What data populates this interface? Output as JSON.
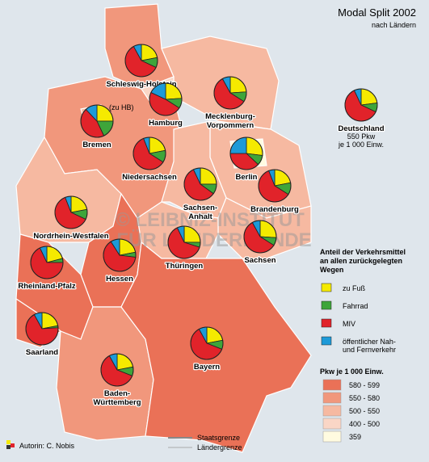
{
  "title": "Modal Split 2002",
  "subtitle": "nach Ländern",
  "watermark": [
    "© LEIBNIZ-INSTITUT",
    "FÜR LÄNDERKUNDE"
  ],
  "modes": {
    "title": [
      "Anteil der Verkehrsmittel",
      "an allen zurückgelegten",
      "Wegen"
    ],
    "items": [
      {
        "name": [
          "zu Fuß"
        ],
        "color": "#f5ea00"
      },
      {
        "name": [
          "Fahrrad"
        ],
        "color": "#3ea53a"
      },
      {
        "name": [
          "MIV"
        ],
        "color": "#e1232a"
      },
      {
        "name": [
          "öffentlicher Nah-",
          "und Fernverkehr"
        ],
        "color": "#1d9ad8"
      }
    ]
  },
  "pkw_legend": {
    "title": "Pkw je 1 000 Einw.",
    "classes": [
      {
        "label": "580 - 599",
        "color": "#ea7157"
      },
      {
        "label": "550 - 580",
        "color": "#f1977c"
      },
      {
        "label": "500 - 550",
        "color": "#f6b9a1"
      },
      {
        "label": "400 - 500",
        "color": "#fad6c6"
      },
      {
        "label": "359",
        "color": "#fffbe0"
      }
    ]
  },
  "states": [
    {
      "name_lines": [
        "Schleswig-Holstein"
      ],
      "pkw_class": 1,
      "shares": [
        22,
        10,
        60,
        8
      ]
    },
    {
      "name_lines": [
        "Hamburg"
      ],
      "pkw_class": 3,
      "shares": [
        24,
        10,
        48,
        18
      ]
    },
    {
      "name_lines": [
        "Bremen"
      ],
      "pkw_class": 2,
      "shares": [
        25,
        18,
        45,
        12
      ],
      "note": "(zu HB)"
    },
    {
      "name_lines": [
        "Mecklenburg-",
        "Vorpommern"
      ],
      "pkw_class": 2,
      "shares": [
        24,
        10,
        58,
        8
      ]
    },
    {
      "name_lines": [
        "Niedersachsen"
      ],
      "pkw_class": 1,
      "shares": [
        22,
        12,
        60,
        6
      ]
    },
    {
      "name_lines": [
        "Berlin"
      ],
      "pkw_class": 4,
      "shares": [
        27,
        10,
        38,
        25
      ]
    },
    {
      "name_lines": [
        "Brandenburg"
      ],
      "pkw_class": 2,
      "shares": [
        22,
        12,
        60,
        6
      ]
    },
    {
      "name_lines": [
        "Sachsen-",
        "Anhalt"
      ],
      "pkw_class": 2,
      "shares": [
        25,
        10,
        58,
        7
      ]
    },
    {
      "name_lines": [
        "Nordrhein-Westfalen"
      ],
      "pkw_class": 2,
      "shares": [
        22,
        10,
        62,
        6
      ]
    },
    {
      "name_lines": [
        "Sachsen"
      ],
      "pkw_class": 2,
      "shares": [
        26,
        8,
        58,
        8
      ]
    },
    {
      "name_lines": [
        "Thüringen"
      ],
      "pkw_class": 2,
      "shares": [
        25,
        5,
        63,
        7
      ]
    },
    {
      "name_lines": [
        "Hessen"
      ],
      "pkw_class": 0,
      "shares": [
        22,
        5,
        64,
        9
      ]
    },
    {
      "name_lines": [
        "Rheinland-Pfalz"
      ],
      "pkw_class": 0,
      "shares": [
        21,
        4,
        68,
        7
      ]
    },
    {
      "name_lines": [
        "Saarland"
      ],
      "pkw_class": 0,
      "shares": [
        22,
        2,
        68,
        8
      ]
    },
    {
      "name_lines": [
        "Baden-",
        "Württemberg"
      ],
      "pkw_class": 1,
      "shares": [
        22,
        9,
        61,
        8
      ]
    },
    {
      "name_lines": [
        "Bayern"
      ],
      "pkw_class": 0,
      "shares": [
        22,
        9,
        61,
        8
      ]
    }
  ],
  "germany": {
    "name": "Deutschland",
    "note_lines": [
      "550 Pkw",
      "je 1 000 Einw."
    ],
    "shares": [
      23,
      9,
      61,
      7
    ]
  },
  "borders": {
    "state": "Staatsgrenze",
    "land": "Ländergrenze"
  },
  "author": "Autorin: C. Nobis"
}
